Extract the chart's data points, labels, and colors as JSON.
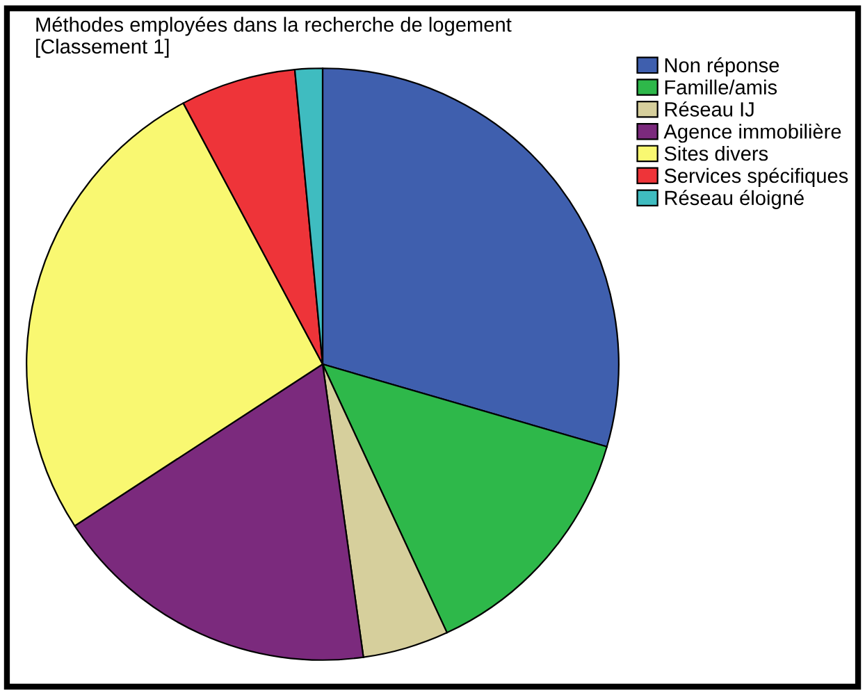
{
  "chart_data": {
    "type": "pie",
    "title": "Méthodes employées dans la recherche de logement\n[Classement 1]",
    "categories": [
      "Non réponse",
      "Famille/amis",
      "Réseau IJ",
      "Agence immobilière",
      "Sites divers",
      "Services spécifiques",
      "Réseau éloigné"
    ],
    "values": [
      29.5,
      13.6,
      4.7,
      18.0,
      26.4,
      6.3,
      1.5
    ],
    "colors": [
      "#3f5fae",
      "#2eb84a",
      "#d6cf9c",
      "#7b2a7d",
      "#f9f871",
      "#ee3439",
      "#3fbcc0"
    ],
    "legend": "top right"
  }
}
